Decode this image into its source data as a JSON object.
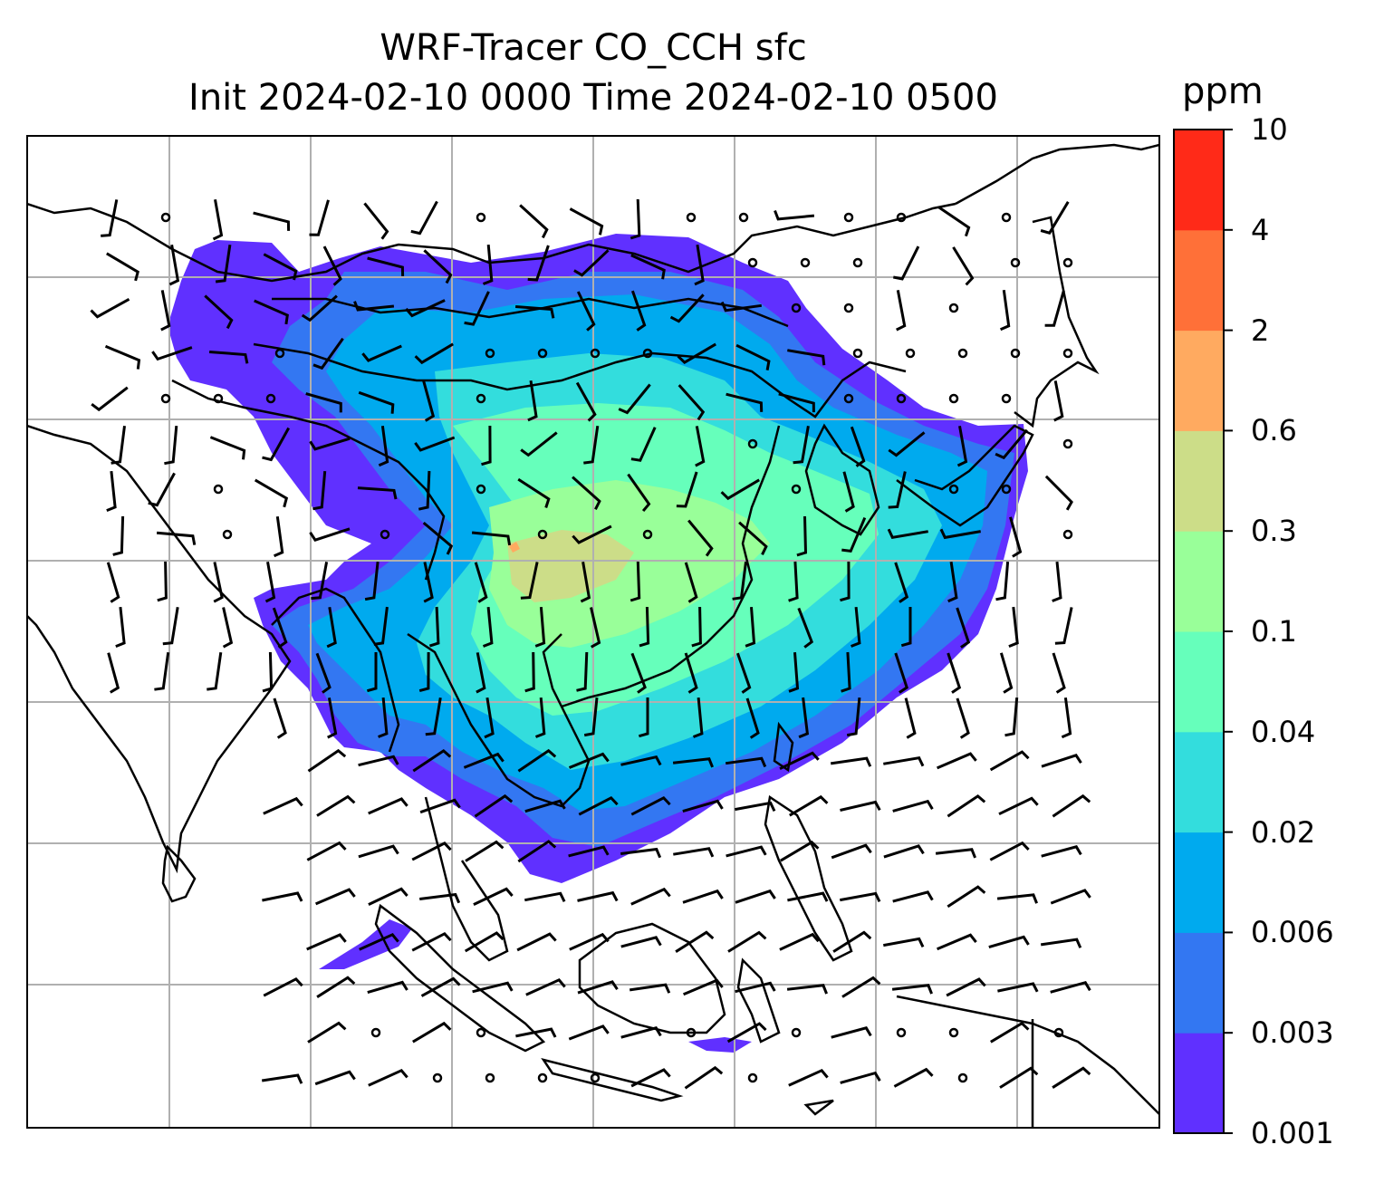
{
  "title": {
    "line1": "WRF-Tracer CO_CCH sfc",
    "line2": "Init 2024-02-10 0000 Time 2024-02-10 0500"
  },
  "colorbar": {
    "unit": "ppm",
    "levels": [
      "0.001",
      "0.003",
      "0.006",
      "0.02",
      "0.04",
      "0.1",
      "0.3",
      "0.6",
      "2",
      "4",
      "10"
    ],
    "colors": [
      "#6030ff",
      "#3377f2",
      "#00aaee",
      "#33dddd",
      "#66ffbb",
      "#99ff99",
      "#ccdd88",
      "#ffaa60",
      "#ff7038",
      "#ff2a18"
    ]
  },
  "map": {
    "background": "#ffffff",
    "grid_color": "#b0b0b0",
    "coastline_color": "#000000",
    "wind_barb_color": "#000000"
  }
}
